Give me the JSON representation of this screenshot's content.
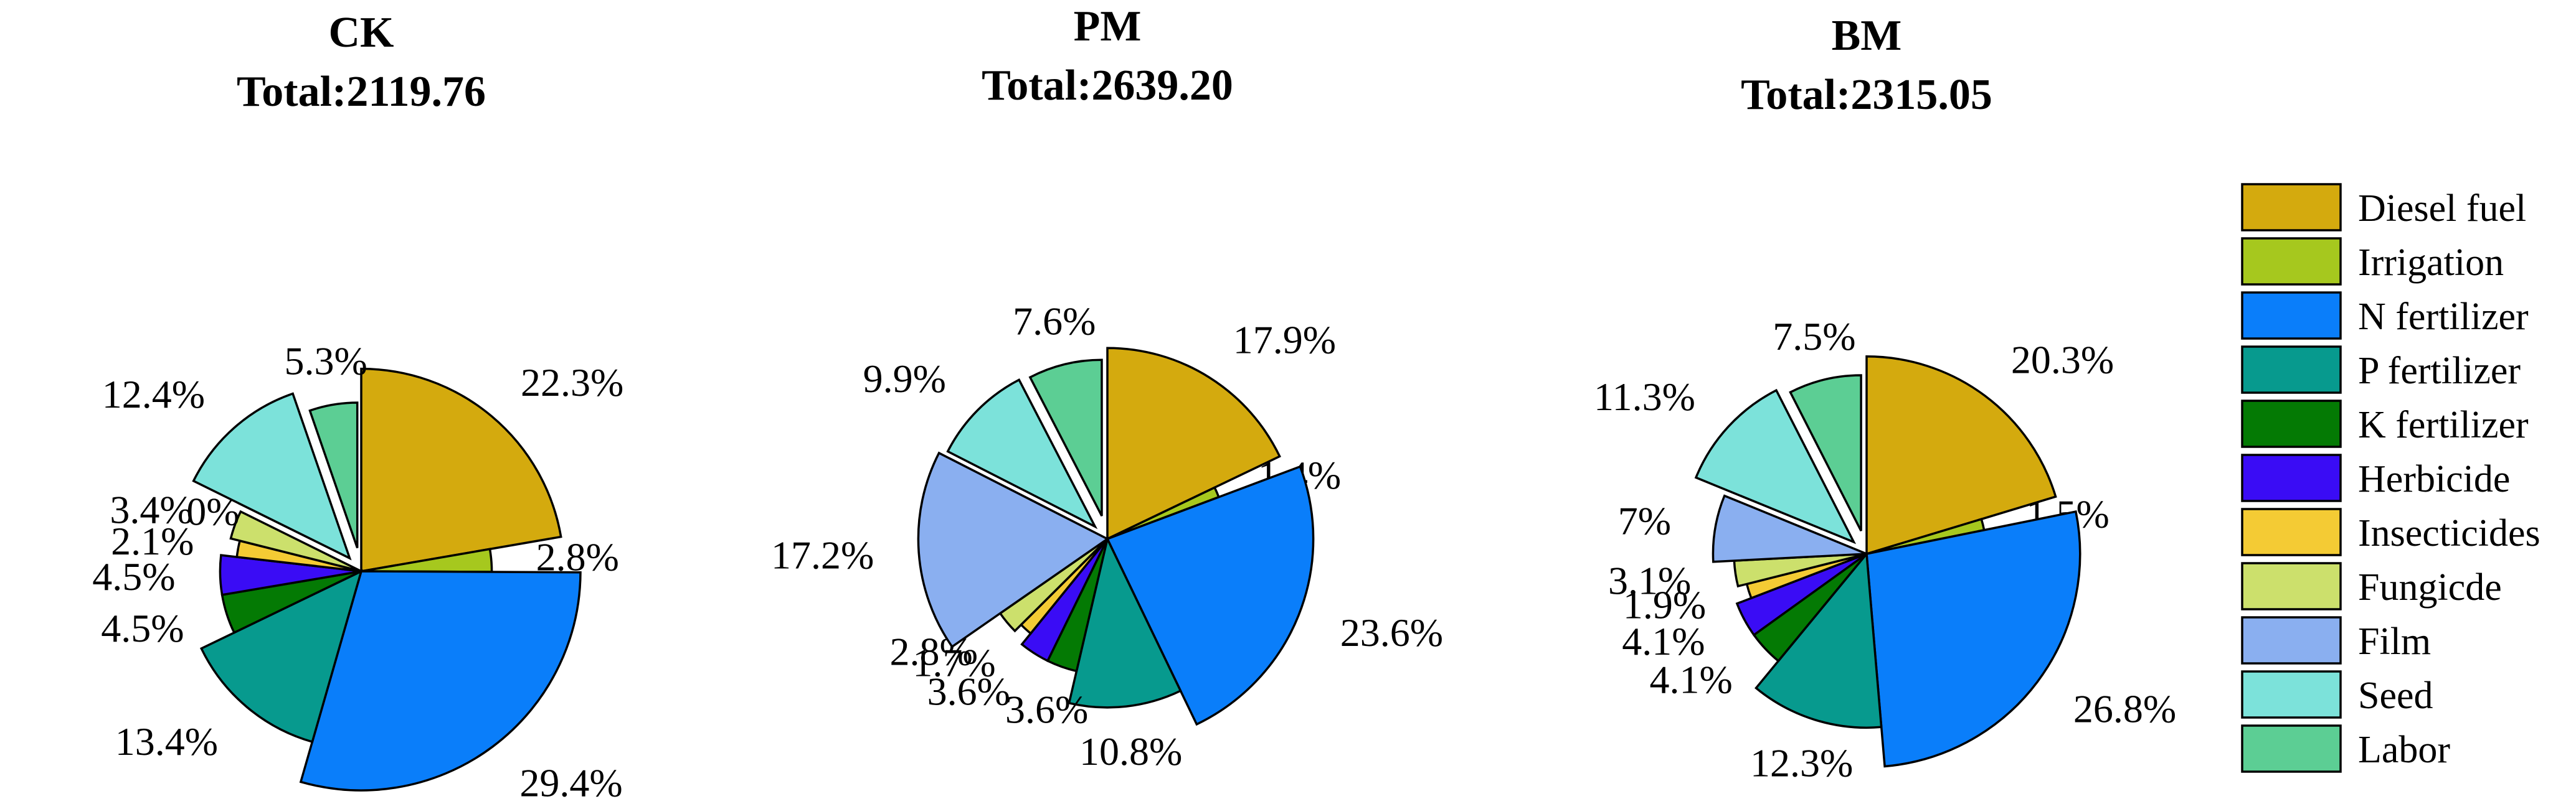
{
  "chart_data": [
    {
      "type": "pie",
      "title": "CK",
      "subtitle": "Total:2119.76",
      "slices": [
        {
          "label": "Diesel fuel",
          "value": 22.3,
          "display": "22.3%"
        },
        {
          "label": "Irrigation",
          "value": 2.8,
          "display": "2.8%"
        },
        {
          "label": "N fertilizer",
          "value": 29.4,
          "display": "29.4%"
        },
        {
          "label": "P fertilizer",
          "value": 13.4,
          "display": "13.4%"
        },
        {
          "label": "K fertilizer",
          "value": 4.5,
          "display": "4.5%"
        },
        {
          "label": "Herbicide",
          "value": 4.5,
          "display": "4.5%"
        },
        {
          "label": "Insecticides",
          "value": 2.1,
          "display": "2.1%"
        },
        {
          "label": "Fungicde",
          "value": 3.4,
          "display": "3.4%"
        },
        {
          "label": "Film",
          "value": 0,
          "display": "0%"
        },
        {
          "label": "Seed",
          "value": 12.4,
          "display": "12.4%"
        },
        {
          "label": "Labor",
          "value": 5.3,
          "display": "5.3%"
        }
      ]
    },
    {
      "type": "pie",
      "title": "PM",
      "subtitle": "Total:2639.20",
      "slices": [
        {
          "label": "Diesel fuel",
          "value": 17.9,
          "display": "17.9%"
        },
        {
          "label": "Irrigation",
          "value": 1.4,
          "display": "1.4%"
        },
        {
          "label": "N fertilizer",
          "value": 23.6,
          "display": "23.6%"
        },
        {
          "label": "P fertilizer",
          "value": 10.8,
          "display": "10.8%"
        },
        {
          "label": "K fertilizer",
          "value": 3.6,
          "display": "3.6%"
        },
        {
          "label": "Herbicide",
          "value": 3.6,
          "display": "3.6%"
        },
        {
          "label": "Insecticides",
          "value": 1.7,
          "display": "1.7%"
        },
        {
          "label": "Fungicde",
          "value": 2.8,
          "display": "2.8%"
        },
        {
          "label": "Film",
          "value": 17.2,
          "display": "17.2%"
        },
        {
          "label": "Seed",
          "value": 9.9,
          "display": "9.9%"
        },
        {
          "label": "Labor",
          "value": 7.6,
          "display": "7.6%"
        }
      ]
    },
    {
      "type": "pie",
      "title": "BM",
      "subtitle": "Total:2315.05",
      "slices": [
        {
          "label": "Diesel fuel",
          "value": 20.3,
          "display": "20.3%"
        },
        {
          "label": "Irrigation",
          "value": 1.5,
          "display": "1.5%"
        },
        {
          "label": "N fertilizer",
          "value": 26.8,
          "display": "26.8%"
        },
        {
          "label": "P fertilizer",
          "value": 12.3,
          "display": "12.3%"
        },
        {
          "label": "K fertilizer",
          "value": 4.1,
          "display": "4.1%"
        },
        {
          "label": "Herbicide",
          "value": 4.1,
          "display": "4.1%"
        },
        {
          "label": "Insecticides",
          "value": 1.9,
          "display": "1.9%"
        },
        {
          "label": "Fungicde",
          "value": 3.1,
          "display": "3.1%"
        },
        {
          "label": "Film",
          "value": 7,
          "display": "7%"
        },
        {
          "label": "Seed",
          "value": 11.3,
          "display": "11.3%"
        },
        {
          "label": "Labor",
          "value": 7.5,
          "display": "7.5%"
        }
      ]
    }
  ],
  "legend": {
    "placement": "right",
    "items": [
      {
        "label": "Diesel fuel",
        "color": "#D4AA0E"
      },
      {
        "label": "Irrigation",
        "color": "#A6C81E"
      },
      {
        "label": "N fertilizer",
        "color": "#0A7EFA"
      },
      {
        "label": "P fertilizer",
        "color": "#079A8E"
      },
      {
        "label": "K fertilizer",
        "color": "#047A04"
      },
      {
        "label": "Herbicide",
        "color": "#3A0CF5"
      },
      {
        "label": "Insecticides",
        "color": "#F4CB34"
      },
      {
        "label": "Fungicde",
        "color": "#CCE06C"
      },
      {
        "label": "Film",
        "color": "#8AAFF0"
      },
      {
        "label": "Seed",
        "color": "#7CE2DA"
      },
      {
        "label": "Labor",
        "color": "#5CCE94"
      }
    ]
  }
}
